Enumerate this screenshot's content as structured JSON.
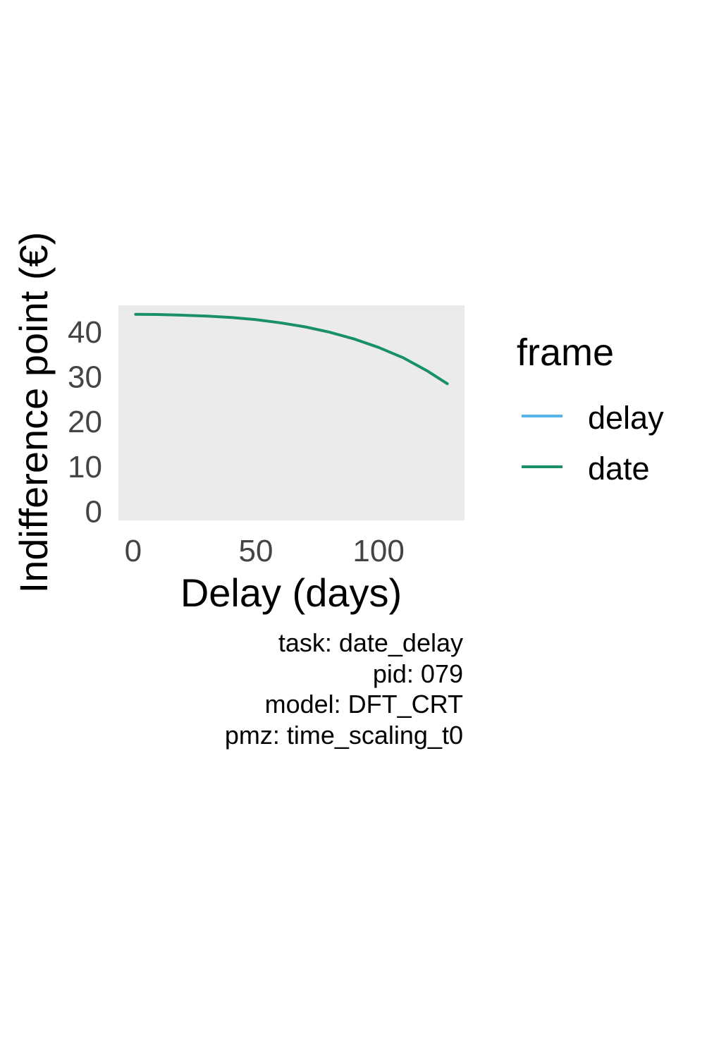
{
  "chart_data": {
    "type": "line",
    "xlabel": "Delay (days)",
    "ylabel": "Indifference point (€)",
    "xlim": [
      -6,
      135
    ],
    "ylim": [
      -2,
      46
    ],
    "x_ticks": [
      0,
      50,
      100
    ],
    "y_ticks": [
      0,
      10,
      20,
      30,
      40
    ],
    "grid": false,
    "panel_background": "#ebebeb",
    "legend": {
      "title": "frame",
      "placement": "right",
      "entries": [
        {
          "label": "delay",
          "color": "#56b4e9"
        },
        {
          "label": "date",
          "color": "#1a9068"
        }
      ]
    },
    "series": [
      {
        "name": "date",
        "color": "#1a9068",
        "x": [
          1,
          10,
          20,
          30,
          40,
          50,
          60,
          70,
          80,
          90,
          100,
          110,
          120,
          128
        ],
        "y": [
          44.0,
          43.95,
          43.8,
          43.6,
          43.3,
          42.8,
          42.1,
          41.2,
          40.0,
          38.5,
          36.6,
          34.3,
          31.3,
          28.5
        ]
      }
    ],
    "caption": [
      "task: date_delay",
      "pid: 079",
      "model: DFT_CRT",
      "pmz: time_scaling_t0"
    ]
  }
}
